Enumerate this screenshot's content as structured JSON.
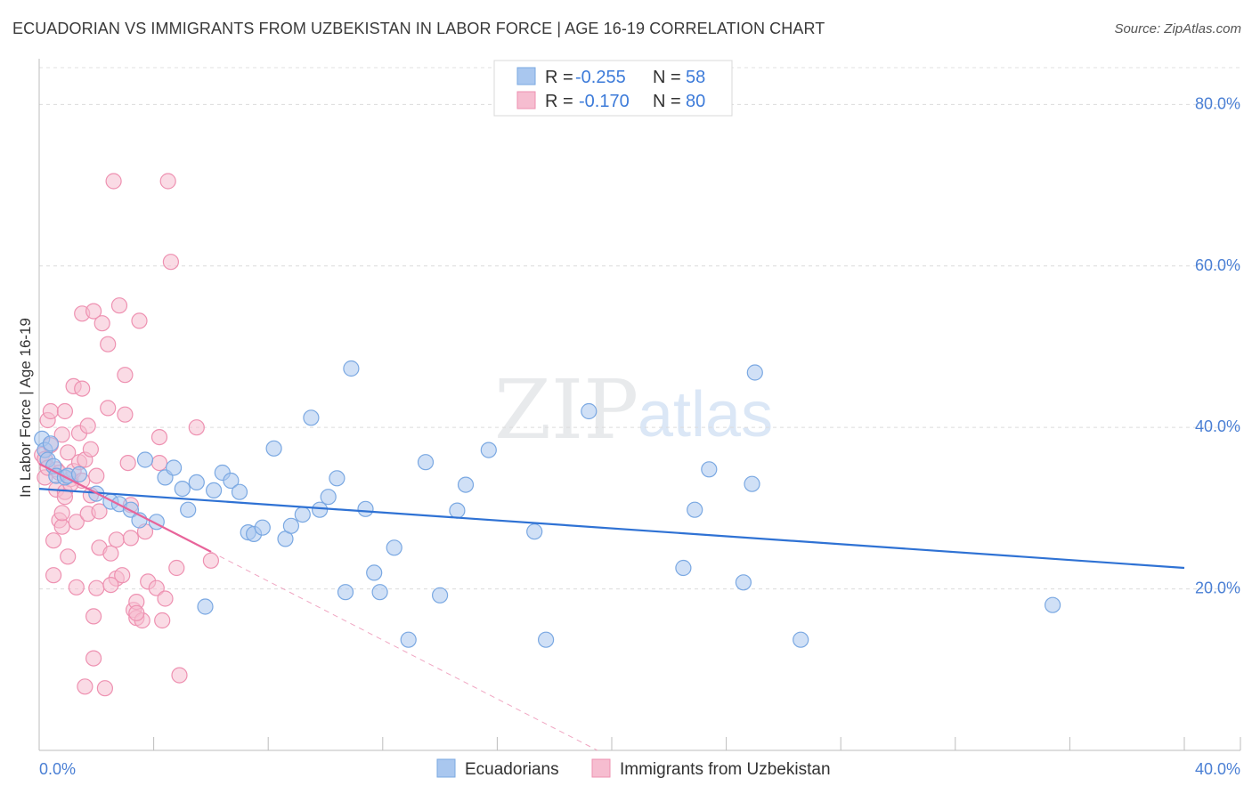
{
  "title": "ECUADORIAN VS IMMIGRANTS FROM UZBEKISTAN IN LABOR FORCE | AGE 16-19 CORRELATION CHART",
  "source": "Source: ZipAtlas.com",
  "watermark": {
    "zip": "ZIP",
    "atlas": "atlas"
  },
  "chart_data": {
    "type": "scatter",
    "xlabel": "",
    "ylabel": "In Labor Force | Age 16-19",
    "xlim": [
      0,
      40
    ],
    "ylim": [
      0,
      85
    ],
    "x_tick_labels": {
      "left": "0.0%",
      "right": "40.0%"
    },
    "y_ticks": [
      {
        "value": 20,
        "label": "20.0%"
      },
      {
        "value": 40,
        "label": "40.0%"
      },
      {
        "value": 60,
        "label": "60.0%"
      },
      {
        "value": 80,
        "label": "80.0%"
      }
    ],
    "legend": {
      "rows": [
        {
          "r_label": "R =",
          "r_value": "-0.255",
          "n_label": "N =",
          "n_value": "58"
        },
        {
          "r_label": "R =",
          "r_value": "-0.170",
          "n_label": "N =",
          "n_value": "80"
        }
      ]
    },
    "series": [
      {
        "name": "Ecuadorians",
        "fill": "#a9c7ef",
        "stroke": "#7aa8e2",
        "line_color": "#2f72d4",
        "trend": {
          "x0": 0,
          "y0": 32.4,
          "x1": 40,
          "y1": 22.6
        },
        "points": [
          [
            0.1,
            38.6
          ],
          [
            0.2,
            37.2
          ],
          [
            0.3,
            36.0
          ],
          [
            0.4,
            38.0
          ],
          [
            0.5,
            35.2
          ],
          [
            0.6,
            34.0
          ],
          [
            0.9,
            33.8
          ],
          [
            1.0,
            34.0
          ],
          [
            1.4,
            34.2
          ],
          [
            2.0,
            31.8
          ],
          [
            2.5,
            30.8
          ],
          [
            2.8,
            30.5
          ],
          [
            3.2,
            29.8
          ],
          [
            3.5,
            28.5
          ],
          [
            3.7,
            36.0
          ],
          [
            4.1,
            28.3
          ],
          [
            4.4,
            33.8
          ],
          [
            4.7,
            35.0
          ],
          [
            5.0,
            32.4
          ],
          [
            5.2,
            29.8
          ],
          [
            5.5,
            33.2
          ],
          [
            5.8,
            17.8
          ],
          [
            6.1,
            32.2
          ],
          [
            6.4,
            34.4
          ],
          [
            6.7,
            33.4
          ],
          [
            7.0,
            32.0
          ],
          [
            7.3,
            27.0
          ],
          [
            7.5,
            26.8
          ],
          [
            7.8,
            27.6
          ],
          [
            8.2,
            37.4
          ],
          [
            8.6,
            26.2
          ],
          [
            8.8,
            27.8
          ],
          [
            9.2,
            29.2
          ],
          [
            9.5,
            41.2
          ],
          [
            9.8,
            29.8
          ],
          [
            10.1,
            31.4
          ],
          [
            10.4,
            33.7
          ],
          [
            10.7,
            19.6
          ],
          [
            10.9,
            47.3
          ],
          [
            11.4,
            29.9
          ],
          [
            11.7,
            22.0
          ],
          [
            11.9,
            19.6
          ],
          [
            12.4,
            25.1
          ],
          [
            12.9,
            13.7
          ],
          [
            13.5,
            35.7
          ],
          [
            14.0,
            19.2
          ],
          [
            14.6,
            29.7
          ],
          [
            14.9,
            32.9
          ],
          [
            15.7,
            37.2
          ],
          [
            17.3,
            27.1
          ],
          [
            17.7,
            13.7
          ],
          [
            19.2,
            42.0
          ],
          [
            22.5,
            22.6
          ],
          [
            22.9,
            29.8
          ],
          [
            23.4,
            34.8
          ],
          [
            24.6,
            20.8
          ],
          [
            24.9,
            33.0
          ],
          [
            25.0,
            46.8
          ],
          [
            26.6,
            13.7
          ],
          [
            35.4,
            18.0
          ]
        ]
      },
      {
        "name": "Immigrants from Uzbekistan",
        "fill": "#f6bdd0",
        "stroke": "#ee91b1",
        "line_color": "#e8649a",
        "trend": {
          "x0": 0,
          "y0": 35.5,
          "x1": 6.0,
          "y1": 24.6
        },
        "trend_dashed": {
          "x0": 6.0,
          "y0": 24.6,
          "x1": 19.5,
          "y1": 0
        },
        "points": [
          [
            0.1,
            36.6
          ],
          [
            0.2,
            36.1
          ],
          [
            0.2,
            33.8
          ],
          [
            0.3,
            40.9
          ],
          [
            0.3,
            35.0
          ],
          [
            0.4,
            42.0
          ],
          [
            0.4,
            37.8
          ],
          [
            0.5,
            21.7
          ],
          [
            0.5,
            26.0
          ],
          [
            0.6,
            32.3
          ],
          [
            0.6,
            34.8
          ],
          [
            0.7,
            28.5
          ],
          [
            0.7,
            34.4
          ],
          [
            0.8,
            39.1
          ],
          [
            0.8,
            27.7
          ],
          [
            0.9,
            42.0
          ],
          [
            0.9,
            32.0
          ],
          [
            0.9,
            31.4
          ],
          [
            1.0,
            24.0
          ],
          [
            1.0,
            36.9
          ],
          [
            1.1,
            33.6
          ],
          [
            1.2,
            45.1
          ],
          [
            1.2,
            34.6
          ],
          [
            1.3,
            28.3
          ],
          [
            1.3,
            20.2
          ],
          [
            1.4,
            39.3
          ],
          [
            1.4,
            35.7
          ],
          [
            1.5,
            54.1
          ],
          [
            1.5,
            44.8
          ],
          [
            1.5,
            33.4
          ],
          [
            1.6,
            36.0
          ],
          [
            1.6,
            7.9
          ],
          [
            1.7,
            29.3
          ],
          [
            1.8,
            31.6
          ],
          [
            1.8,
            37.3
          ],
          [
            1.9,
            54.4
          ],
          [
            1.9,
            16.6
          ],
          [
            1.9,
            11.4
          ],
          [
            2.0,
            34.0
          ],
          [
            2.0,
            20.1
          ],
          [
            2.1,
            29.6
          ],
          [
            2.1,
            25.1
          ],
          [
            2.2,
            52.9
          ],
          [
            2.3,
            7.7
          ],
          [
            2.4,
            50.3
          ],
          [
            2.4,
            42.4
          ],
          [
            2.5,
            24.4
          ],
          [
            2.6,
            70.5
          ],
          [
            2.7,
            21.3
          ],
          [
            2.7,
            26.1
          ],
          [
            2.8,
            55.1
          ],
          [
            2.9,
            21.7
          ],
          [
            3.0,
            46.5
          ],
          [
            3.0,
            41.6
          ],
          [
            3.1,
            35.6
          ],
          [
            3.2,
            30.4
          ],
          [
            3.2,
            26.3
          ],
          [
            3.3,
            17.4
          ],
          [
            3.4,
            18.4
          ],
          [
            3.4,
            16.4
          ],
          [
            3.5,
            53.2
          ],
          [
            3.6,
            16.1
          ],
          [
            3.7,
            27.1
          ],
          [
            3.8,
            20.9
          ],
          [
            4.1,
            20.1
          ],
          [
            4.2,
            38.8
          ],
          [
            4.2,
            35.6
          ],
          [
            4.3,
            16.1
          ],
          [
            4.4,
            18.8
          ],
          [
            4.5,
            70.5
          ],
          [
            4.6,
            60.5
          ],
          [
            4.8,
            22.6
          ],
          [
            4.9,
            9.3
          ],
          [
            5.5,
            40.0
          ],
          [
            6.0,
            23.5
          ],
          [
            3.4,
            17.0
          ],
          [
            1.1,
            33.0
          ],
          [
            0.8,
            29.4
          ],
          [
            2.5,
            20.5
          ],
          [
            1.7,
            40.2
          ]
        ]
      }
    ]
  }
}
